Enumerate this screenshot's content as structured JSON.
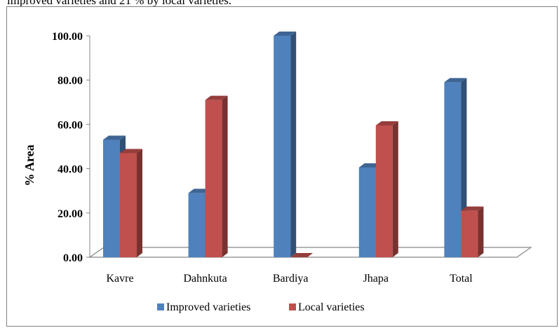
{
  "caption": "improved varieties and 21 % by local varieties.",
  "colors": {
    "improved": "#4f81bd",
    "local": "#c0504d",
    "gridline": "#868686",
    "frame": "#7f7f7f"
  },
  "chart_data": {
    "type": "bar",
    "categories": [
      "Kavre",
      "Dahnkuta",
      "Bardiya",
      "Jhapa",
      "Total"
    ],
    "series": [
      {
        "name": "Improved varieties",
        "values": [
          53.0,
          29.0,
          100.0,
          40.5,
          79.0
        ]
      },
      {
        "name": "Local varieties",
        "values": [
          47.0,
          71.0,
          0.0,
          59.5,
          21.0
        ]
      }
    ],
    "xlabel": "",
    "ylabel": "% Area",
    "ylim": [
      0,
      100
    ],
    "yticks": [
      "0.00",
      "20.00",
      "40.00",
      "60.00",
      "80.00",
      "100.00"
    ],
    "grid": false,
    "legend_position": "bottom",
    "style": "3d-clustered-column"
  }
}
